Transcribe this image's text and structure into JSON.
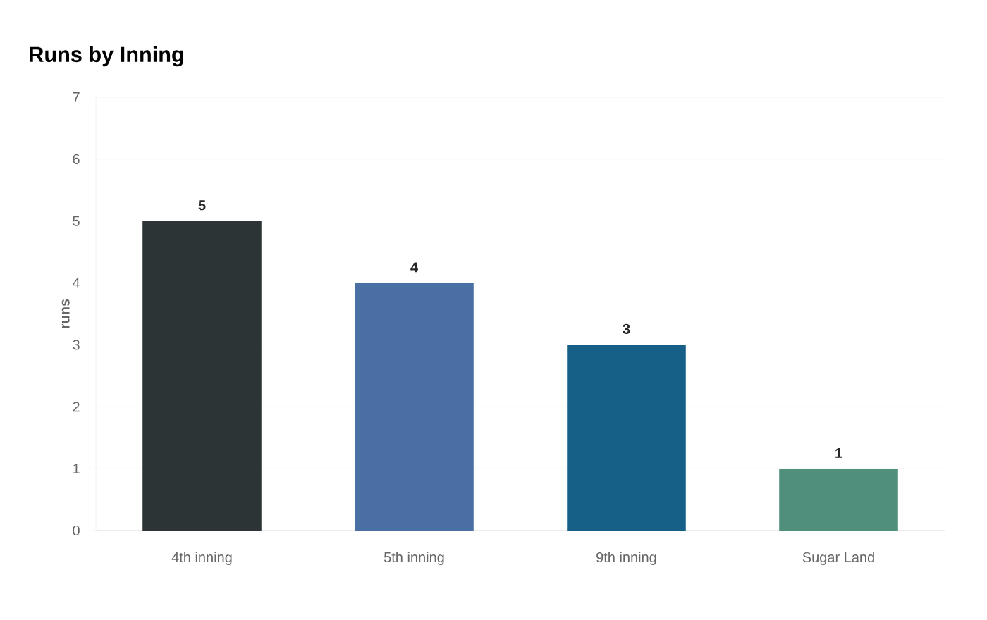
{
  "chart_data": {
    "type": "bar",
    "title": "Runs by Inning",
    "ylabel": "runs",
    "categories": [
      "4th inning",
      "5th inning",
      "9th inning",
      "Sugar Land"
    ],
    "values": [
      5,
      4,
      3,
      1
    ],
    "colors": [
      "#2d3436",
      "#4a6fa5",
      "#166088",
      "#4f8f7b"
    ],
    "ylim": [
      0,
      7
    ],
    "yticks": [
      0,
      1,
      2,
      3,
      4,
      5,
      6,
      7
    ],
    "grid": "y",
    "data_labels": true
  }
}
